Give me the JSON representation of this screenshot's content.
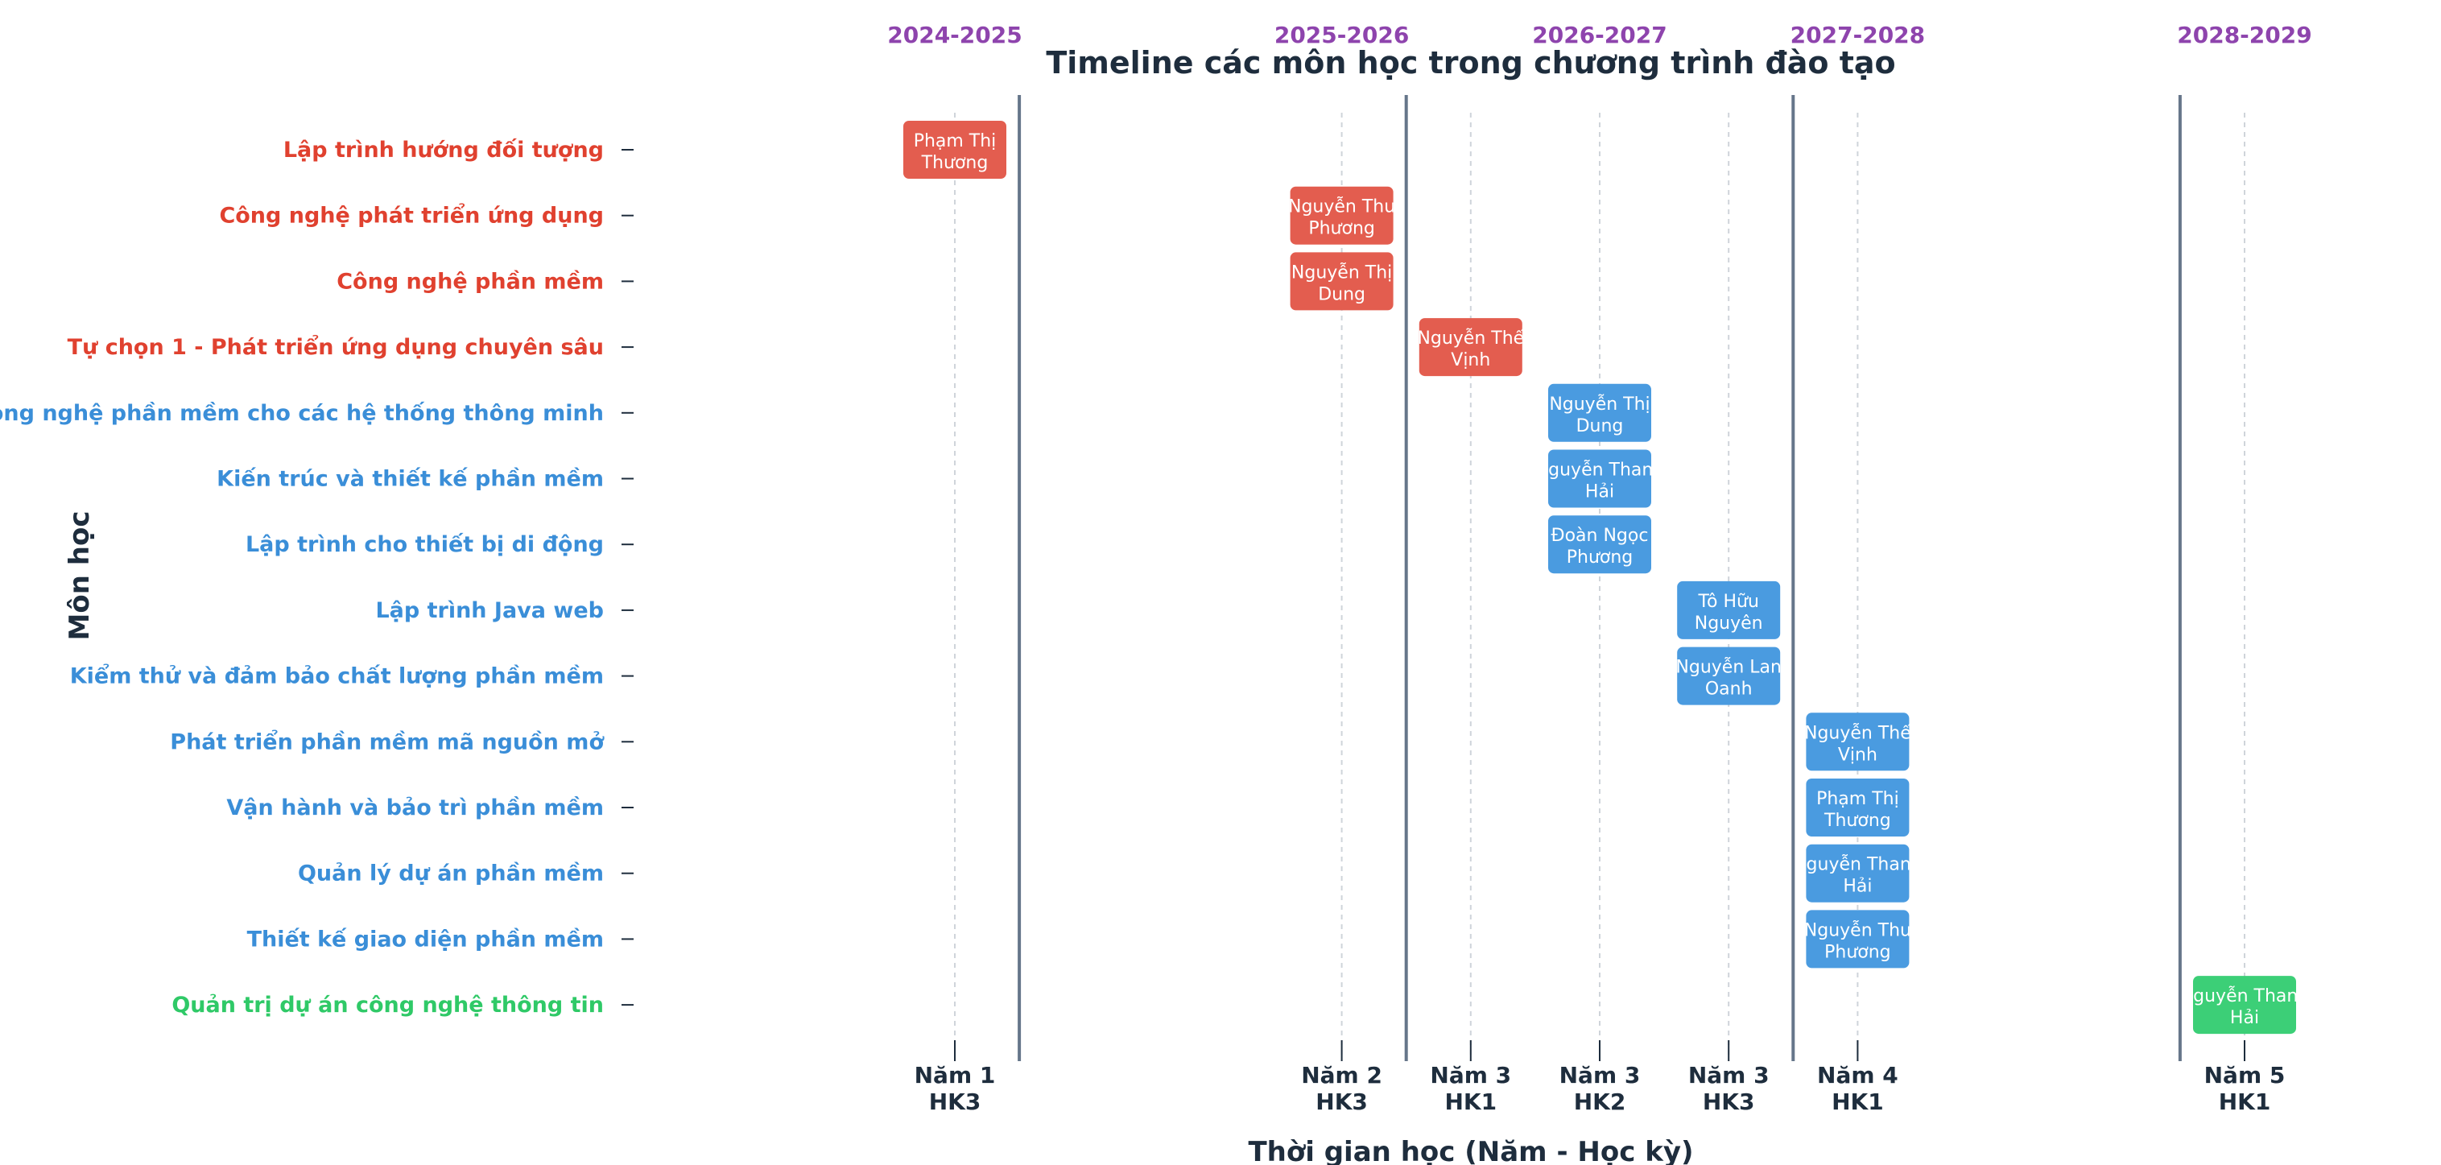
{
  "chart_data": {
    "type": "timeline",
    "title": "Timeline các môn học trong chương trình đào tạo",
    "xlabel": "Thời gian học (Năm - Học kỳ)",
    "ylabel": "Môn học",
    "grid": "vertical dotted at each period",
    "periods": [
      {
        "year": "Năm 1",
        "term": "HK3",
        "index": 0
      },
      {
        "year": "Năm 2",
        "term": "HK3",
        "index": 3
      },
      {
        "year": "Năm 3",
        "term": "HK1",
        "index": 4
      },
      {
        "year": "Năm 3",
        "term": "HK2",
        "index": 5
      },
      {
        "year": "Năm 3",
        "term": "HK3",
        "index": 6
      },
      {
        "year": "Năm 4",
        "term": "HK1",
        "index": 7
      },
      {
        "year": "Năm 5",
        "term": "HK1",
        "index": 10
      }
    ],
    "year_separators": [
      0.5,
      3.5,
      6.5,
      9.5
    ],
    "year_labels": [
      {
        "label": "2024-2025",
        "at": 0
      },
      {
        "label": "2025-2026",
        "at": 3
      },
      {
        "label": "2026-2027",
        "at": 5
      },
      {
        "label": "2027-2028",
        "at": 7
      },
      {
        "label": "2028-2029",
        "at": 10
      }
    ],
    "courses": [
      {
        "name": "Lập trình hướng đối tượng",
        "teacher": "Phạm Thị\nThương",
        "period": 0,
        "group": "red"
      },
      {
        "name": "Công nghệ phát triển ứng dụng",
        "teacher": "Nguyễn Thu\nPhương",
        "period": 1,
        "group": "red"
      },
      {
        "name": "Công nghệ phần mềm",
        "teacher": "Nguyễn Thị\nDung",
        "period": 1,
        "group": "red"
      },
      {
        "name": "Tự chọn 1 - Phát triển ứng dụng chuyên sâu",
        "teacher": "Nguyễn Thế\nVịnh",
        "period": 2,
        "group": "red"
      },
      {
        "name": "Công nghệ phần mềm cho các hệ thống thông minh",
        "teacher": "Nguyễn Thị\nDung",
        "period": 3,
        "group": "blue"
      },
      {
        "name": "Kiến trúc và thiết kế phần mềm",
        "teacher": "Nguyễn Thanh\nHải",
        "period": 3,
        "group": "blue"
      },
      {
        "name": "Lập trình cho thiết bị di động",
        "teacher": "Đoàn Ngọc\nPhương",
        "period": 3,
        "group": "blue"
      },
      {
        "name": "Lập trình Java web",
        "teacher": "Tô Hữu\nNguyên",
        "period": 4,
        "group": "blue"
      },
      {
        "name": "Kiểm thử và đảm bảo chất lượng phần mềm",
        "teacher": "Nguyễn Lan\nOanh",
        "period": 4,
        "group": "blue"
      },
      {
        "name": "Phát triển phần mềm mã nguồn mở",
        "teacher": "Nguyễn Thế\nVịnh",
        "period": 5,
        "group": "blue"
      },
      {
        "name": "Vận hành và bảo trì phần mềm",
        "teacher": "Phạm Thị\nThương",
        "period": 5,
        "group": "blue"
      },
      {
        "name": "Quản lý dự án phần mềm",
        "teacher": "Nguyễn Thanh\nHải",
        "period": 5,
        "group": "blue"
      },
      {
        "name": "Thiết kế giao diện phần mềm",
        "teacher": "Nguyễn Thu\nPhương",
        "period": 5,
        "group": "blue"
      },
      {
        "name": "Quản trị dự án công nghệ thông tin",
        "teacher": "Nguyễn Thanh\nHải",
        "period": 6,
        "group": "green"
      }
    ]
  },
  "colors": {
    "red": "#e35d4f",
    "blue": "#4a9be0",
    "green": "#3ccf77",
    "red_text": "#e0412f",
    "blue_text": "#3a8ed8",
    "green_text": "#2fc967",
    "year_label": "#8e44ad",
    "separator": "#66768a",
    "grid": "#cfd4da",
    "axis_text": "#1e2d3d"
  }
}
